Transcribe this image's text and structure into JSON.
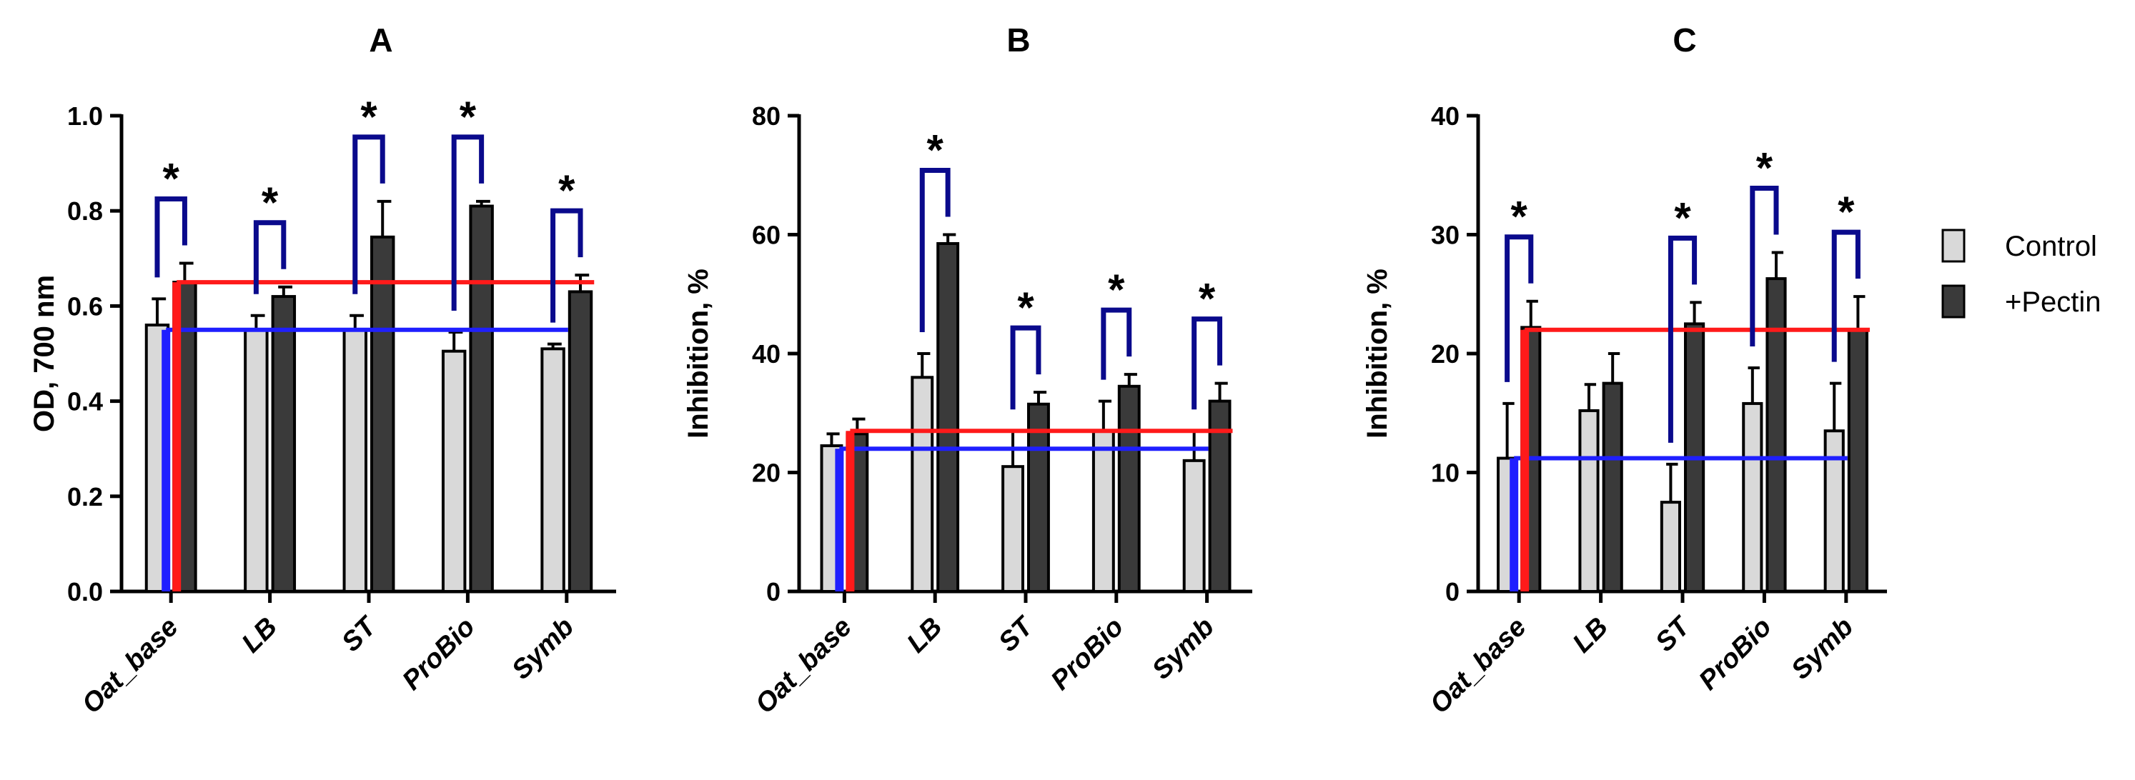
{
  "colors": {
    "control": "#d9d9d9",
    "pectin": "#3a3a3a",
    "bracket": "#0a0a8c",
    "ref_control": "#1f1fff",
    "ref_pectin": "#ff1a1a"
  },
  "legend": {
    "control": "Control",
    "pectin": "+Pectin"
  },
  "chart_data": [
    {
      "panel": "A",
      "type": "bar",
      "title": "A",
      "ylabel": "OD, 700 nm",
      "ylim": [
        0,
        1.0
      ],
      "yticks": [
        "0.0",
        "0.2",
        "0.4",
        "0.6",
        "0.8",
        "1.0"
      ],
      "categories": [
        "Oat_base",
        "LB",
        "ST",
        "ProBio",
        "Symb"
      ],
      "series": [
        {
          "name": "Control",
          "values": [
            0.56,
            0.55,
            0.55,
            0.505,
            0.51
          ],
          "errors": [
            0.055,
            0.03,
            0.03,
            0.04,
            0.01
          ]
        },
        {
          "name": "+Pectin",
          "values": [
            0.65,
            0.62,
            0.745,
            0.81,
            0.63
          ],
          "errors": [
            0.04,
            0.02,
            0.075,
            0.01,
            0.035
          ]
        }
      ],
      "reference_lines": {
        "control": 0.55,
        "pectin": 0.65
      },
      "significance": [
        "*",
        "*",
        "*",
        "*",
        "*"
      ]
    },
    {
      "panel": "B",
      "type": "bar",
      "title": "B",
      "ylabel": "Inhibition, %",
      "ylim": [
        0,
        80
      ],
      "yticks": [
        "0",
        "20",
        "40",
        "60",
        "80"
      ],
      "categories": [
        "Oat_base",
        "LB",
        "ST",
        "ProBio",
        "Symb"
      ],
      "series": [
        {
          "name": "Control",
          "values": [
            24.5,
            36,
            21,
            27,
            22
          ],
          "errors": [
            2,
            4,
            6,
            5,
            5
          ]
        },
        {
          "name": "+Pectin",
          "values": [
            26.5,
            58.5,
            31.5,
            34.5,
            32
          ],
          "errors": [
            2.5,
            1.5,
            2,
            2,
            3
          ]
        }
      ],
      "reference_lines": {
        "control": 24,
        "pectin": 27
      },
      "significance": [
        "",
        "*",
        "*",
        "*",
        "*"
      ]
    },
    {
      "panel": "C",
      "type": "bar",
      "title": "C",
      "ylabel": "Inhibition, %",
      "ylim": [
        0,
        40
      ],
      "yticks": [
        "0",
        "10",
        "20",
        "30",
        "40"
      ],
      "categories": [
        "Oat_base",
        "LB",
        "ST",
        "ProBio",
        "Symb"
      ],
      "series": [
        {
          "name": "Control",
          "values": [
            11.2,
            15.2,
            7.5,
            15.8,
            13.5
          ],
          "errors": [
            4.6,
            2.2,
            3.2,
            3,
            4
          ]
        },
        {
          "name": "+Pectin",
          "values": [
            22.2,
            17.5,
            22.5,
            26.3,
            22
          ],
          "errors": [
            2.2,
            2.5,
            1.8,
            2.2,
            2.8
          ]
        }
      ],
      "reference_lines": {
        "control": 11.2,
        "pectin": 22
      },
      "significance": [
        "*",
        "",
        "*",
        "*",
        "*"
      ]
    }
  ]
}
